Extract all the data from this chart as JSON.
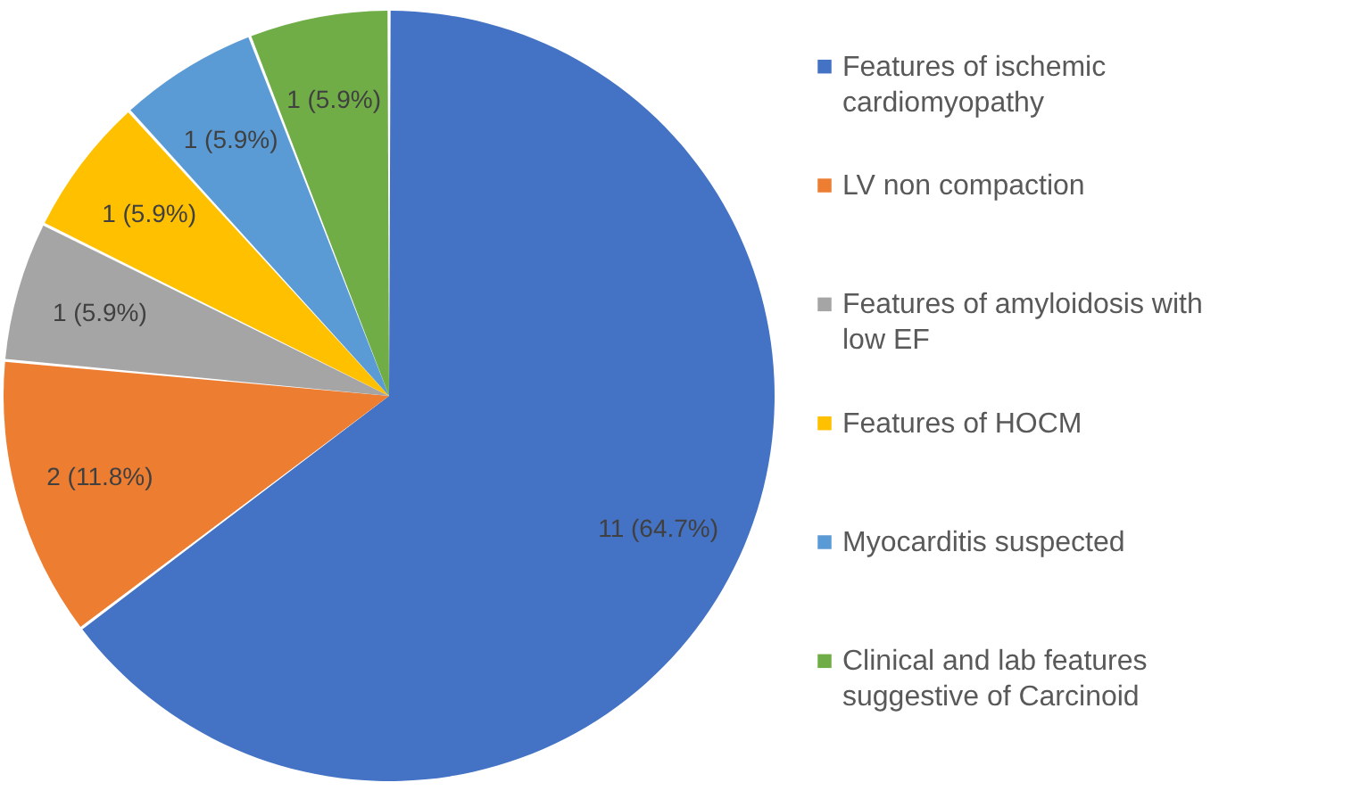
{
  "chart_data": {
    "type": "pie",
    "categories": [
      "Features of ischemic cardiomyopathy",
      "LV non compaction",
      "Features of amyloidosis with low EF",
      "Features of HOCM",
      "Myocarditis suspected",
      "Clinical and lab features suggestive of Carcinoid"
    ],
    "values": [
      11,
      2,
      1,
      1,
      1,
      1
    ],
    "colors": [
      "#4472c4",
      "#ed7d31",
      "#a5a5a5",
      "#ffc000",
      "#5b9bd5",
      "#70ad47"
    ],
    "value_labels": [
      "11 (64.7%)",
      "2 (11.8%)",
      "1 (5.9%)",
      "1 (5.9%)",
      "1 (5.9%)",
      "1 (5.9%)"
    ],
    "legend": "right"
  }
}
